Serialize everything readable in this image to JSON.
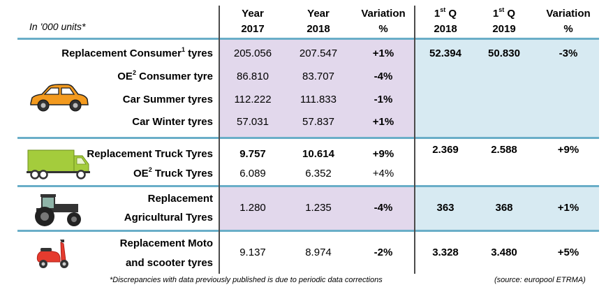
{
  "header": {
    "units": "In '000 units*",
    "col_year_2017": [
      "Year",
      "2017"
    ],
    "col_year_2018": [
      "Year",
      "2018"
    ],
    "col_var1": [
      "Variation",
      "%"
    ],
    "col_q_2018": [
      "1st Q",
      "2018"
    ],
    "col_q_2019": [
      "1st Q",
      "2019"
    ],
    "col_var2": [
      "Variation",
      "%"
    ]
  },
  "rows": {
    "r1": {
      "label": "Replacement Consumer¹ tyres",
      "y2017": "205.056",
      "y2018": "207.547",
      "var": "+1%",
      "q2018": "52.394",
      "q2019": "50.830",
      "qvar": "-3%"
    },
    "r2": {
      "label": "OE² Consumer tyre",
      "y2017": "86.810",
      "y2018": "83.707",
      "var": "-4%"
    },
    "r3": {
      "label": "Car Summer tyres",
      "y2017": "112.222",
      "y2018": "111.833",
      "var": "-1%"
    },
    "r4": {
      "label": "Car Winter tyres",
      "y2017": "57.031",
      "y2018": "57.837",
      "var": "+1%"
    },
    "r5": {
      "label": "Replacement Truck Tyres",
      "y2017": "9.757",
      "y2018": "10.614",
      "var": "+9%",
      "q2018": "2.369",
      "q2019": "2.588",
      "qvar": "+9%"
    },
    "r6": {
      "label": "OE² Truck Tyres",
      "y2017": "6.089",
      "y2018": "6.352",
      "var": "+4%"
    },
    "r7": {
      "label1": "Replacement",
      "label2": "Agricultural Tyres",
      "y2017": "1.280",
      "y2018": "1.235",
      "var": "-4%",
      "q2018": "363",
      "q2019": "368",
      "qvar": "+1%"
    },
    "r8": {
      "label1": "Replacement Moto",
      "label2": "and scooter tyres",
      "y2017": "9.137",
      "y2018": "8.974",
      "var": "-2%",
      "q2018": "3.328",
      "q2019": "3.480",
      "qvar": "+5%"
    }
  },
  "footer": {
    "note": "*Discrepancies with data previously published is due to periodic data corrections",
    "source": "(source: europool ETRMA)"
  },
  "icons": [
    "car-icon",
    "truck-icon",
    "tractor-icon",
    "scooter-icon"
  ],
  "colors": {
    "purple_fill": "#e2d8ec",
    "blue_fill": "#d7eaf2",
    "separator": "#6aaec8",
    "car": "#f39a1e",
    "truck": "#a4cc3c"
  }
}
